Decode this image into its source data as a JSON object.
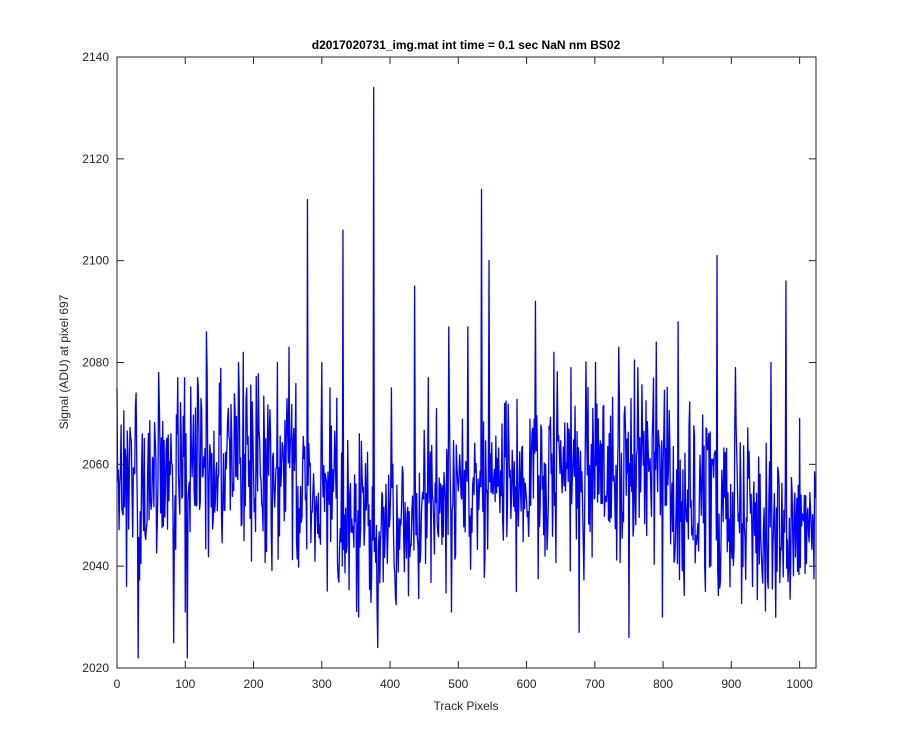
{
  "chart_data": {
    "type": "line",
    "title": "d2017020731_img.mat int time = 0.1 sec  NaN nm BS02",
    "xlabel": "Track Pixels",
    "ylabel": "Signal (ADU) at pixel 697",
    "xlim": [
      0,
      1024
    ],
    "ylim": [
      2020,
      2140
    ],
    "xticks": [
      0,
      100,
      200,
      300,
      400,
      500,
      600,
      700,
      800,
      900,
      1000
    ],
    "yticks": [
      2020,
      2040,
      2060,
      2080,
      2100,
      2120,
      2140
    ],
    "grid": false,
    "legend": "none",
    "line_color": "#0000ff",
    "series": [
      {
        "x": [
          0,
          28,
          31,
          57,
          83,
          100,
          103,
          131,
          163,
          185,
          197,
          235,
          252,
          279,
          300,
          312,
          331,
          355,
          376,
          382,
          402,
          436,
          456,
          486,
          490,
          514,
          534,
          545,
          565,
          585,
          613,
          640,
          665,
          677,
          701,
          735,
          750,
          763,
          790,
          799,
          822,
          856,
          879,
          906,
          931,
          958,
          980,
          1000,
          1024
        ],
        "y": [
          2075,
          2074,
          2022,
          2061,
          2025,
          2031,
          2022,
          2086,
          2071,
          2082,
          2041,
          2080,
          2083,
          2112,
          2080,
          2075,
          2106,
          2066,
          2134,
          2024,
          2075,
          2095,
          2077,
          2087,
          2031,
          2087,
          2114,
          2100,
          2049,
          2035,
          2092,
          2082,
          2079,
          2027,
          2080,
          2083,
          2026,
          2079,
          2084,
          2030,
          2088,
          2050,
          2101,
          2079,
          2036,
          2080,
          2096,
          2069,
          2055
        ]
      }
    ]
  }
}
